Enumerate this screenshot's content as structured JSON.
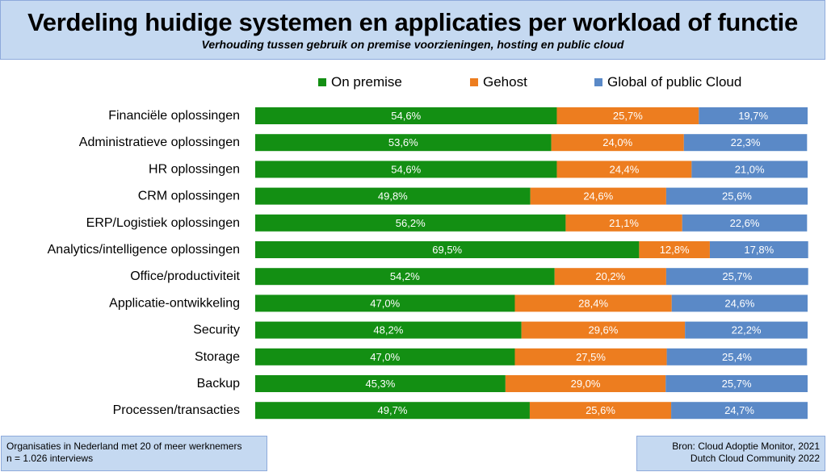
{
  "header": {
    "title": "Verdeling huidige systemen en applicaties per workload of functie",
    "subtitle": "Verhouding tussen gebruik on premise voorzieningen, hosting en public cloud"
  },
  "footer": {
    "left_line1": "Organisaties in Nederland met 20 of meer werknemers",
    "left_line2": "n = 1.026 interviews",
    "right_line1": "Bron: Cloud Adoptie Monitor, 2021",
    "right_line2": "Dutch Cloud Community 2022"
  },
  "chart_data": {
    "type": "bar",
    "orientation": "horizontal",
    "stacked": true,
    "normalized_to": 100,
    "value_suffix": "%",
    "legend_position": "top",
    "categories": [
      "Financiële oplossingen",
      "Administratieve oplossingen",
      "HR oplossingen",
      "CRM oplossingen",
      "ERP/Logistiek oplossingen",
      "Analytics/intelligence oplossingen",
      "Office/productiviteit",
      "Applicatie-ontwikkeling",
      "Security",
      "Storage",
      "Backup",
      "Processen/transacties"
    ],
    "series": [
      {
        "name": "On premise",
        "color": "#138f13",
        "values": [
          54.6,
          53.6,
          54.6,
          49.8,
          56.2,
          69.5,
          54.2,
          47.0,
          48.2,
          47.0,
          45.3,
          49.7
        ],
        "labels": [
          "54,6%",
          "53,6%",
          "54,6%",
          "49,8%",
          "56,2%",
          "69,5%",
          "54,2%",
          "47,0%",
          "48,2%",
          "47,0%",
          "45,3%",
          "49,7%"
        ]
      },
      {
        "name": "Gehost",
        "color": "#ed7d1f",
        "values": [
          25.7,
          24.0,
          24.4,
          24.6,
          21.1,
          12.8,
          20.2,
          28.4,
          29.6,
          27.5,
          29.0,
          25.6
        ],
        "labels": [
          "25,7%",
          "24,0%",
          "24,4%",
          "24,6%",
          "21,1%",
          "12,8%",
          "20,2%",
          "28,4%",
          "29,6%",
          "27,5%",
          "29,0%",
          "25,6%"
        ]
      },
      {
        "name": "Global of public Cloud",
        "color": "#5a89c7",
        "values": [
          19.7,
          22.3,
          21.0,
          25.6,
          22.6,
          17.8,
          25.7,
          24.6,
          22.2,
          25.4,
          25.7,
          24.7
        ],
        "labels": [
          "19,7%",
          "22,3%",
          "21,0%",
          "25,6%",
          "22,6%",
          "17,8%",
          "25,7%",
          "24,6%",
          "22,2%",
          "25,4%",
          "25,7%",
          "24,7%"
        ]
      }
    ]
  }
}
